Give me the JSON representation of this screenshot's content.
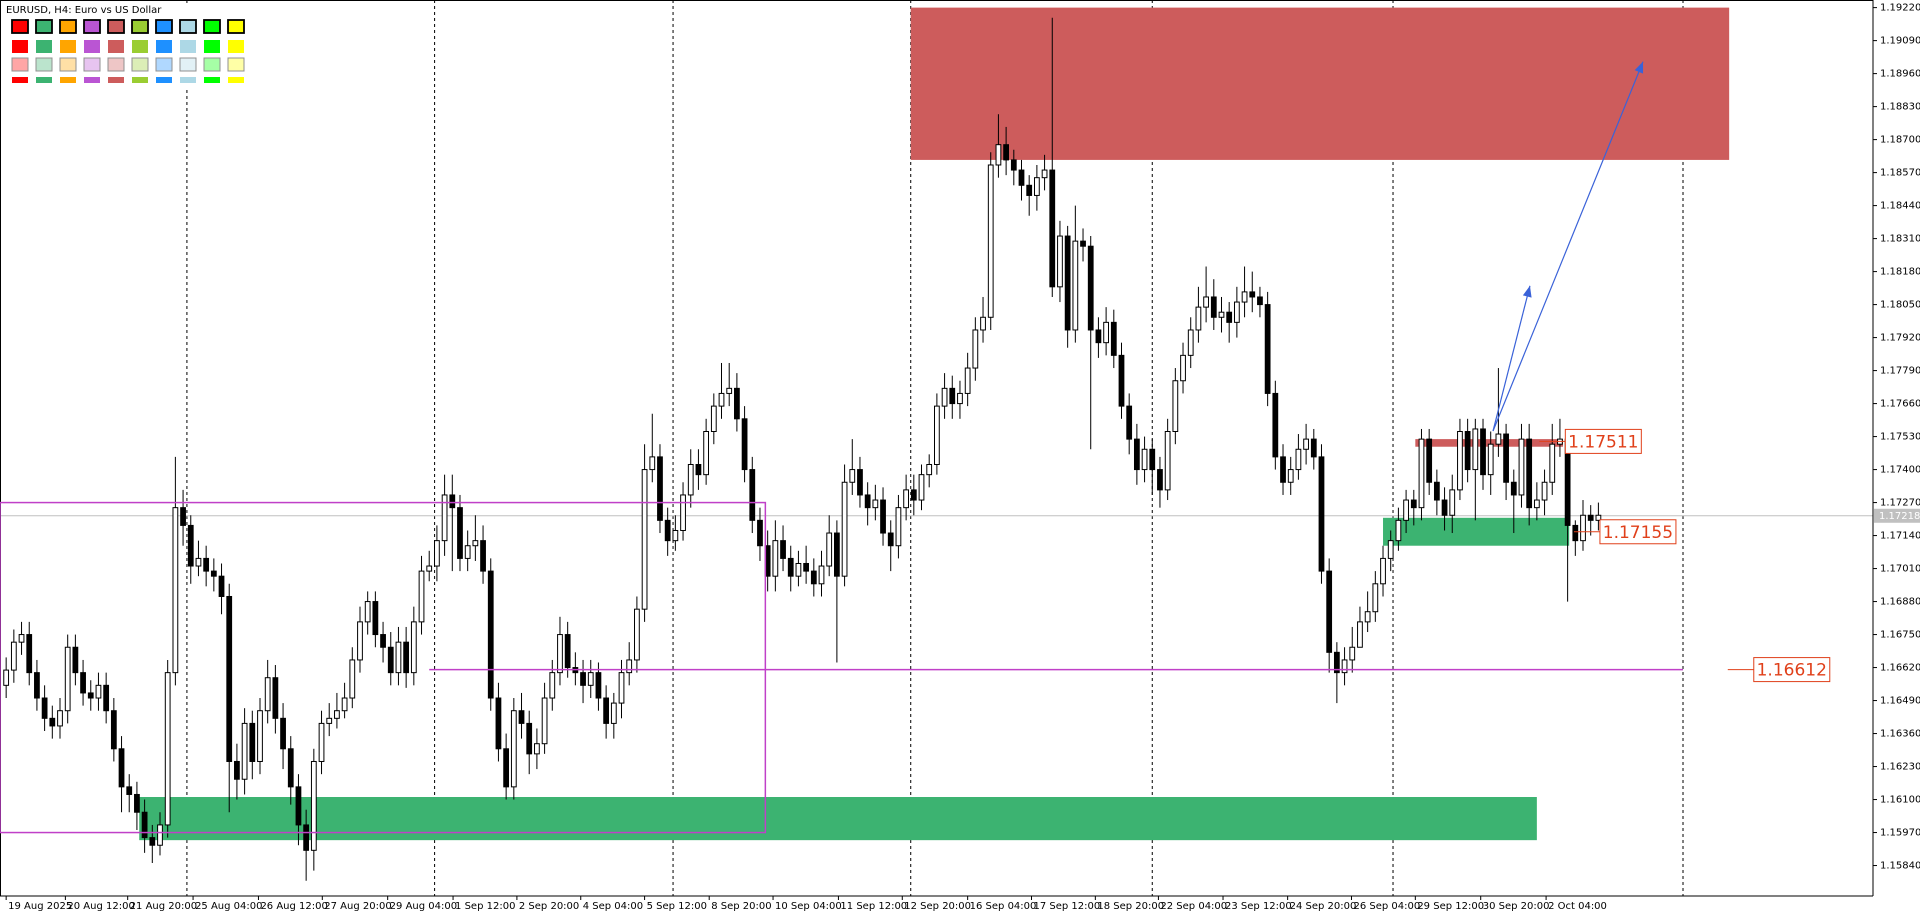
{
  "header": {
    "title": "EURUSD, H4:  Euro vs US Dollar"
  },
  "palette": [
    "#ff0000",
    "#3cb371",
    "#ffa500",
    "#ba55d3",
    "#cd5c5c",
    "#9acd32",
    "#1e90ff",
    "#add8e6",
    "#00ff00",
    "#ffff00"
  ],
  "chart_data": {
    "type": "candlestick",
    "open": [
      1.1655,
      1.1661,
      1.1672,
      1.1675,
      1.166,
      1.165,
      1.1642,
      1.1639,
      1.1645,
      1.167,
      1.166,
      1.1652,
      1.165,
      1.1655,
      1.1645,
      1.163,
      1.1615,
      1.1612,
      1.1605,
      1.1595,
      1.1592,
      1.16,
      1.166,
      1.1725,
      1.1718,
      1.1702,
      1.1705,
      1.17,
      1.1698,
      1.169,
      1.1625,
      1.1618,
      1.164,
      1.1625,
      1.1645,
      1.1658,
      1.1642,
      1.163,
      1.1615,
      1.16,
      1.159,
      1.1625,
      1.164,
      1.1642,
      1.1645,
      1.165,
      1.1665,
      1.168,
      1.1688,
      1.1675,
      1.167,
      1.166,
      1.1672,
      1.166,
      1.168,
      1.17,
      1.1702,
      1.1712,
      1.173,
      1.1725,
      1.1705,
      1.171,
      1.1712,
      1.17,
      1.165,
      1.163,
      1.1615,
      1.1645,
      1.164,
      1.1628,
      1.1632,
      1.165,
      1.166,
      1.1675,
      1.1662,
      1.166,
      1.1655,
      1.166,
      1.165,
      1.164,
      1.1648,
      1.166,
      1.1665,
      1.1685,
      1.174,
      1.1745,
      1.172,
      1.1712,
      1.1716,
      1.173,
      1.1742,
      1.1738,
      1.1755,
      1.1765,
      1.177,
      1.1772,
      1.176,
      1.174,
      1.172,
      1.171,
      1.1698,
      1.1712,
      1.1705,
      1.1698,
      1.1703,
      1.17,
      1.1695,
      1.1702,
      1.1715,
      1.1698,
      1.1735,
      1.174,
      1.173,
      1.1725,
      1.1728,
      1.1715,
      1.171,
      1.1725,
      1.1732,
      1.1728,
      1.1738,
      1.1742,
      1.1765,
      1.1772,
      1.1766,
      1.177,
      1.178,
      1.1795,
      1.18,
      1.186,
      1.1868,
      1.1862,
      1.1858,
      1.1852,
      1.1848,
      1.1855,
      1.1858,
      1.1812,
      1.1832,
      1.1795,
      1.183,
      1.1828,
      1.1795,
      1.179,
      1.1798,
      1.1785,
      1.1765,
      1.1752,
      1.174,
      1.1748,
      1.174,
      1.1732,
      1.1755,
      1.1775,
      1.1785,
      1.1795,
      1.1804,
      1.1808,
      1.18,
      1.1802,
      1.1798,
      1.1806,
      1.181,
      1.1808,
      1.1805,
      1.177,
      1.1745,
      1.1735,
      1.174,
      1.1748,
      1.1752,
      1.1745,
      1.17,
      1.1668,
      1.166,
      1.1665,
      1.167,
      1.168,
      1.1684,
      1.1695,
      1.1705,
      1.1712,
      1.172,
      1.1728,
      1.1725,
      1.1752,
      1.1735,
      1.1728,
      1.1722,
      1.1732,
      1.1755,
      1.174,
      1.1756,
      1.1738,
      1.175,
      1.1754,
      1.1735,
      1.173,
      1.1752,
      1.1725,
      1.1728,
      1.1735,
      1.175,
      1.1752,
      1.1718,
      1.1712,
      1.1722,
      1.172
    ],
    "high": [
      1.1666,
      1.1677,
      1.168,
      1.168,
      1.1665,
      1.1655,
      1.1647,
      1.165,
      1.1675,
      1.1675,
      1.1665,
      1.1657,
      1.166,
      1.166,
      1.165,
      1.1635,
      1.162,
      1.1617,
      1.161,
      1.16,
      1.1605,
      1.1665,
      1.1745,
      1.1732,
      1.1722,
      1.1712,
      1.171,
      1.1705,
      1.1703,
      1.1695,
      1.1632,
      1.1646,
      1.1645,
      1.165,
      1.1665,
      1.1663,
      1.1648,
      1.1635,
      1.162,
      1.1606,
      1.163,
      1.1645,
      1.1648,
      1.1652,
      1.1656,
      1.167,
      1.1686,
      1.1692,
      1.1692,
      1.168,
      1.1676,
      1.1678,
      1.1678,
      1.1686,
      1.1706,
      1.1708,
      1.1718,
      1.1738,
      1.1738,
      1.173,
      1.1716,
      1.1722,
      1.1718,
      1.1705,
      1.1656,
      1.1636,
      1.165,
      1.1652,
      1.1645,
      1.1638,
      1.1656,
      1.1665,
      1.1682,
      1.168,
      1.1668,
      1.1665,
      1.1665,
      1.1664,
      1.1655,
      1.1652,
      1.1665,
      1.1672,
      1.169,
      1.175,
      1.1762,
      1.175,
      1.1725,
      1.1722,
      1.1735,
      1.1748,
      1.1748,
      1.176,
      1.177,
      1.1782,
      1.1782,
      1.1778,
      1.1765,
      1.1745,
      1.1725,
      1.1716,
      1.172,
      1.1718,
      1.171,
      1.1708,
      1.171,
      1.1705,
      1.1708,
      1.1722,
      1.172,
      1.1742,
      1.1752,
      1.1745,
      1.1735,
      1.1734,
      1.1733,
      1.172,
      1.173,
      1.1738,
      1.1738,
      1.1742,
      1.1746,
      1.177,
      1.1778,
      1.1777,
      1.1775,
      1.1786,
      1.18,
      1.1808,
      1.1865,
      1.188,
      1.1875,
      1.1866,
      1.1862,
      1.1856,
      1.186,
      1.1864,
      1.1918,
      1.1838,
      1.1836,
      1.1844,
      1.1835,
      1.1832,
      1.18,
      1.1804,
      1.1803,
      1.179,
      1.177,
      1.1758,
      1.1753,
      1.1752,
      1.1745,
      1.176,
      1.178,
      1.179,
      1.18,
      1.1812,
      1.182,
      1.1815,
      1.1808,
      1.1806,
      1.1812,
      1.182,
      1.1818,
      1.1812,
      1.181,
      1.1775,
      1.175,
      1.1745,
      1.1754,
      1.1758,
      1.1756,
      1.175,
      1.1705,
      1.1672,
      1.167,
      1.1678,
      1.1686,
      1.1692,
      1.17,
      1.171,
      1.1716,
      1.1725,
      1.1732,
      1.1732,
      1.1756,
      1.1756,
      1.174,
      1.1733,
      1.1738,
      1.176,
      1.176,
      1.176,
      1.176,
      1.1755,
      1.178,
      1.1758,
      1.174,
      1.1758,
      1.1758,
      1.1735,
      1.174,
      1.1758,
      1.176,
      1.1756,
      1.172,
      1.1728,
      1.1726,
      1.1727
    ],
    "low": [
      1.165,
      1.1656,
      1.1667,
      1.1655,
      1.1645,
      1.1637,
      1.1634,
      1.1634,
      1.164,
      1.1655,
      1.1647,
      1.1645,
      1.1645,
      1.164,
      1.1625,
      1.1605,
      1.1605,
      1.1598,
      1.1589,
      1.1585,
      1.1588,
      1.1595,
      1.1655,
      1.171,
      1.1695,
      1.1698,
      1.1694,
      1.1692,
      1.1683,
      1.1605,
      1.161,
      1.1612,
      1.1618,
      1.162,
      1.164,
      1.1636,
      1.1622,
      1.1608,
      1.1592,
      1.1578,
      1.1582,
      1.162,
      1.1635,
      1.1638,
      1.1642,
      1.1646,
      1.166,
      1.1675,
      1.167,
      1.1664,
      1.1655,
      1.1655,
      1.1654,
      1.1655,
      1.1675,
      1.1696,
      1.1696,
      1.1706,
      1.17,
      1.17,
      1.17,
      1.1704,
      1.1695,
      1.1645,
      1.1625,
      1.161,
      1.161,
      1.1634,
      1.162,
      1.1622,
      1.1628,
      1.1645,
      1.1655,
      1.1658,
      1.1655,
      1.1648,
      1.165,
      1.1645,
      1.1634,
      1.1634,
      1.1642,
      1.1655,
      1.166,
      1.168,
      1.1735,
      1.1715,
      1.1706,
      1.1708,
      1.1712,
      1.1725,
      1.1732,
      1.1734,
      1.175,
      1.176,
      1.1765,
      1.1755,
      1.1735,
      1.1715,
      1.1704,
      1.1692,
      1.1692,
      1.17,
      1.1692,
      1.1694,
      1.1695,
      1.169,
      1.169,
      1.1698,
      1.1664,
      1.1694,
      1.173,
      1.1725,
      1.1718,
      1.172,
      1.171,
      1.17,
      1.1705,
      1.172,
      1.1722,
      1.1724,
      1.1733,
      1.1738,
      1.176,
      1.176,
      1.176,
      1.1765,
      1.1775,
      1.179,
      1.1795,
      1.1855,
      1.1856,
      1.1852,
      1.1846,
      1.184,
      1.1842,
      1.185,
      1.1808,
      1.1806,
      1.1788,
      1.179,
      1.1822,
      1.1748,
      1.1784,
      1.1785,
      1.178,
      1.176,
      1.1746,
      1.1734,
      1.1735,
      1.173,
      1.1725,
      1.1728,
      1.175,
      1.177,
      1.178,
      1.179,
      1.1798,
      1.1795,
      1.1794,
      1.179,
      1.1792,
      1.18,
      1.1802,
      1.18,
      1.1765,
      1.174,
      1.173,
      1.173,
      1.1736,
      1.1742,
      1.174,
      1.1695,
      1.166,
      1.1648,
      1.1655,
      1.166,
      1.1672,
      1.1676,
      1.168,
      1.169,
      1.17,
      1.1708,
      1.1715,
      1.1718,
      1.172,
      1.173,
      1.1722,
      1.1716,
      1.1715,
      1.1728,
      1.1735,
      1.172,
      1.1732,
      1.173,
      1.1745,
      1.1728,
      1.1715,
      1.1725,
      1.1718,
      1.172,
      1.1722,
      1.173,
      1.1745,
      1.1688,
      1.1706,
      1.1708,
      1.1714,
      1.1716
    ],
    "close": [
      1.1661,
      1.1672,
      1.1675,
      1.166,
      1.165,
      1.1642,
      1.1639,
      1.1645,
      1.167,
      1.166,
      1.1652,
      1.165,
      1.1655,
      1.1645,
      1.163,
      1.1615,
      1.1612,
      1.1605,
      1.1595,
      1.1592,
      1.16,
      1.166,
      1.1725,
      1.1718,
      1.1702,
      1.1705,
      1.17,
      1.1698,
      1.169,
      1.1625,
      1.1618,
      1.164,
      1.1625,
      1.1645,
      1.1658,
      1.1642,
      1.163,
      1.1615,
      1.16,
      1.159,
      1.1625,
      1.164,
      1.1642,
      1.1645,
      1.165,
      1.1665,
      1.168,
      1.1688,
      1.1675,
      1.167,
      1.166,
      1.1672,
      1.166,
      1.168,
      1.17,
      1.1702,
      1.1712,
      1.173,
      1.1725,
      1.1705,
      1.171,
      1.1712,
      1.17,
      1.165,
      1.163,
      1.1615,
      1.1645,
      1.164,
      1.1628,
      1.1632,
      1.165,
      1.166,
      1.1675,
      1.1662,
      1.166,
      1.1655,
      1.166,
      1.165,
      1.164,
      1.1648,
      1.166,
      1.1665,
      1.1685,
      1.174,
      1.1745,
      1.172,
      1.1712,
      1.1716,
      1.173,
      1.1742,
      1.1738,
      1.1755,
      1.1765,
      1.177,
      1.1772,
      1.176,
      1.174,
      1.172,
      1.171,
      1.1698,
      1.1712,
      1.1705,
      1.1698,
      1.1703,
      1.17,
      1.1695,
      1.1702,
      1.1715,
      1.1698,
      1.1735,
      1.174,
      1.173,
      1.1725,
      1.1728,
      1.1715,
      1.171,
      1.1725,
      1.1732,
      1.1728,
      1.1738,
      1.1742,
      1.1765,
      1.1772,
      1.1766,
      1.177,
      1.178,
      1.1795,
      1.18,
      1.186,
      1.1868,
      1.1862,
      1.1858,
      1.1852,
      1.1848,
      1.1855,
      1.1858,
      1.1812,
      1.1832,
      1.1795,
      1.183,
      1.1828,
      1.1795,
      1.179,
      1.1798,
      1.1785,
      1.1765,
      1.1752,
      1.174,
      1.1748,
      1.174,
      1.1732,
      1.1755,
      1.1775,
      1.1785,
      1.1795,
      1.1804,
      1.1808,
      1.18,
      1.1802,
      1.1798,
      1.1806,
      1.181,
      1.1808,
      1.1805,
      1.177,
      1.1745,
      1.1735,
      1.174,
      1.1748,
      1.1752,
      1.1745,
      1.17,
      1.1668,
      1.166,
      1.1665,
      1.167,
      1.168,
      1.1684,
      1.1695,
      1.1705,
      1.1712,
      1.172,
      1.1728,
      1.1725,
      1.1752,
      1.1735,
      1.1728,
      1.1722,
      1.1732,
      1.1755,
      1.174,
      1.1756,
      1.1738,
      1.175,
      1.1754,
      1.1735,
      1.173,
      1.1752,
      1.1725,
      1.1728,
      1.1735,
      1.175,
      1.1752,
      1.1718,
      1.1712,
      1.1722,
      1.172,
      1.1722
    ],
    "bull_color": "#ffffff",
    "bear_color": "#000000",
    "xlim": [
      -0.8,
      242.7
    ],
    "xticks": [
      {
        "value": 0,
        "label": "19 Aug 2025"
      },
      {
        "value": 7.7,
        "label": "20 Aug 12:00"
      },
      {
        "value": 15.8,
        "label": "21 Aug 20:00"
      },
      {
        "value": 24.3,
        "label": "25 Aug 04:00"
      },
      {
        "value": 32.8,
        "label": "26 Aug 12:00"
      },
      {
        "value": 41.1,
        "label": "27 Aug 20:00"
      },
      {
        "value": 49.6,
        "label": "29 Aug 04:00"
      },
      {
        "value": 58.1,
        "label": "1 Sep 12:00"
      },
      {
        "value": 66.4,
        "label": "2 Sep 20:00"
      },
      {
        "value": 74.7,
        "label": "4 Sep 04:00"
      },
      {
        "value": 83.0,
        "label": "5 Sep 12:00"
      },
      {
        "value": 91.4,
        "label": "8 Sep 20:00"
      },
      {
        "value": 99.7,
        "label": "10 Sep 04:00"
      },
      {
        "value": 108.2,
        "label": "11 Sep 12:00"
      },
      {
        "value": 116.5,
        "label": "12 Sep 20:00"
      },
      {
        "value": 125.0,
        "label": "16 Sep 04:00"
      },
      {
        "value": 133.3,
        "label": "17 Sep 12:00"
      },
      {
        "value": 141.6,
        "label": "18 Sep 20:00"
      },
      {
        "value": 149.8,
        "label": "22 Sep 04:00"
      },
      {
        "value": 158.2,
        "label": "23 Sep 12:00"
      },
      {
        "value": 166.6,
        "label": "24 Sep 20:00"
      },
      {
        "value": 174.9,
        "label": "26 Sep 04:00"
      },
      {
        "value": 183.2,
        "label": "29 Sep 12:00"
      },
      {
        "value": 191.7,
        "label": "30 Sep 20:00"
      },
      {
        "value": 200.2,
        "label": "2 Oct 04:00"
      }
    ],
    "ylim": [
      1.1572,
      1.1925
    ],
    "yticks": [
      {
        "value": 1.1922,
        "label": "1.19220"
      },
      {
        "value": 1.1909,
        "label": "1.19090"
      },
      {
        "value": 1.1896,
        "label": "1.18960"
      },
      {
        "value": 1.1883,
        "label": "1.18830"
      },
      {
        "value": 1.187,
        "label": "1.18700"
      },
      {
        "value": 1.1857,
        "label": "1.18570"
      },
      {
        "value": 1.1844,
        "label": "1.18440"
      },
      {
        "value": 1.1831,
        "label": "1.18310"
      },
      {
        "value": 1.1818,
        "label": "1.18180"
      },
      {
        "value": 1.1805,
        "label": "1.18050"
      },
      {
        "value": 1.1792,
        "label": "1.17920"
      },
      {
        "value": 1.1779,
        "label": "1.17790"
      },
      {
        "value": 1.1766,
        "label": "1.17660"
      },
      {
        "value": 1.1753,
        "label": "1.17530"
      },
      {
        "value": 1.174,
        "label": "1.17400"
      },
      {
        "value": 1.1727,
        "label": "1.17270"
      },
      {
        "value": 1.1714,
        "label": "1.17140"
      },
      {
        "value": 1.1701,
        "label": "1.17010"
      },
      {
        "value": 1.1688,
        "label": "1.16880"
      },
      {
        "value": 1.1675,
        "label": "1.16750"
      },
      {
        "value": 1.1662,
        "label": "1.16620"
      },
      {
        "value": 1.1649,
        "label": "1.16490"
      },
      {
        "value": 1.1636,
        "label": "1.16360"
      },
      {
        "value": 1.1623,
        "label": "1.16230"
      },
      {
        "value": 1.161,
        "label": "1.16100"
      },
      {
        "value": 1.1597,
        "label": "1.15970"
      },
      {
        "value": 1.1584,
        "label": "1.15840"
      }
    ],
    "grid": false,
    "separators": [
      23.5,
      55.7,
      86.7,
      117.6,
      149,
      180.3,
      218
    ],
    "current_price": {
      "value": 1.17218,
      "label": "1.17218",
      "color": "#c0c0c0"
    },
    "zones": [
      {
        "x": [
          117.6,
          224
        ],
        "y": [
          1.1862,
          1.1922
        ],
        "color": "#cd5c5c",
        "fill": true
      },
      {
        "x": [
          17.3,
          199
        ],
        "y": [
          1.1594,
          1.1611
        ],
        "color": "#3cb371",
        "fill": true
      },
      {
        "x": [
          179,
          203.2
        ],
        "y": [
          1.171,
          1.1721
        ],
        "color": "#3cb371",
        "fill": true
      },
      {
        "x": [
          183.2,
          202.4
        ],
        "y": [
          1.1749,
          1.1752
        ],
        "color": "#cd5c5c",
        "fill": true
      },
      {
        "x": [
          -0.8,
          98.7
        ],
        "y": [
          1.1597,
          1.1727
        ],
        "color": "#c040c8",
        "fill": false
      }
    ],
    "lines": [
      {
        "x": [
          55,
          218
        ],
        "y": [
          1.16612,
          1.16612
        ],
        "color": "#c040c8"
      }
    ],
    "arrows": [
      {
        "x": [
          193.3,
          198.1
        ],
        "y": [
          1.17552,
          1.18124
        ],
        "color": "#3a62d8"
      },
      {
        "x": [
          193.3,
          212.8
        ],
        "y": [
          1.17552,
          1.19007
        ],
        "color": "#3a62d8"
      }
    ],
    "annotations": [
      {
        "x": 202.7,
        "value": 1.17511,
        "label": "1.17511",
        "color": "#e0401a"
      },
      {
        "x": 207.2,
        "value": 1.17155,
        "label": "1.17155",
        "color": "#e0401a"
      },
      {
        "x": 227.2,
        "value": 1.16612,
        "label": "1.16612",
        "color": "#e0401a"
      }
    ]
  }
}
